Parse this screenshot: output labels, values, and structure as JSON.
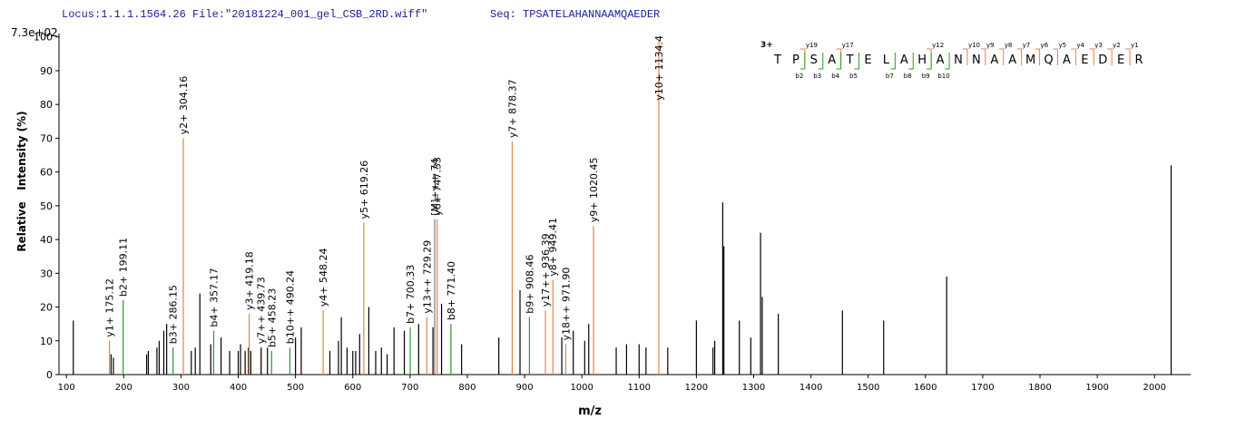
{
  "chart_data": {
    "type": "spectrum",
    "locus": "Locus:1.1.1.1564.26 File:\"20181224_001_gel_CSB_2RD.wiff\"",
    "seq_label": "Seq: TPSATELAHANNAAMQAEDER",
    "scale_label": "7.3e+02",
    "xlabel": "m/z",
    "ylabel": "Relative   Intensity (%)",
    "xlim": [
      87,
      2063
    ],
    "ylim": [
      0,
      101
    ],
    "xticks": [
      100,
      200,
      300,
      400,
      500,
      600,
      700,
      800,
      900,
      1000,
      1100,
      1200,
      1300,
      1400,
      1500,
      1600,
      1700,
      1800,
      1900,
      2000
    ],
    "yticks": [
      0,
      10,
      20,
      30,
      40,
      50,
      60,
      70,
      80,
      90,
      100
    ],
    "x": [
      112,
      175.12,
      178,
      182,
      199.11,
      240,
      243,
      258,
      262,
      270,
      275,
      286.15,
      304.16,
      318,
      325,
      333,
      352,
      357.17,
      370,
      385,
      400,
      404,
      412,
      418,
      419.18,
      422,
      439.73,
      440,
      451,
      458.23,
      490.24,
      500,
      510,
      548.24,
      560,
      575,
      580,
      590,
      600,
      605,
      612,
      619.26,
      628,
      640,
      650,
      660,
      672,
      690,
      700.33,
      715,
      729.29,
      740,
      743,
      747.33,
      755,
      771.4,
      790,
      855,
      878.37,
      892,
      908.46,
      936.39,
      949.41,
      965,
      971.9,
      985,
      1005,
      1012,
      1020.45,
      1060,
      1078,
      1100,
      1112,
      1134.4,
      1150,
      1200,
      1229,
      1232,
      1246,
      1248,
      1275,
      1295,
      1312,
      1315,
      1343,
      1455,
      1527,
      1637,
      2029
    ],
    "values": [
      16,
      10,
      6,
      5,
      22,
      6,
      7,
      8,
      10,
      13,
      15,
      8,
      70,
      7,
      8,
      24,
      9,
      13,
      11,
      7,
      7,
      9,
      7,
      8,
      18,
      7,
      8,
      8,
      8,
      7,
      8,
      11,
      14,
      19,
      7,
      10,
      17,
      8,
      7,
      7,
      12,
      45,
      20,
      7,
      8,
      6,
      14,
      13,
      14,
      15,
      17,
      14,
      46,
      46,
      21,
      15,
      9,
      11,
      69,
      25,
      17,
      19,
      28,
      11,
      9,
      13,
      10,
      15,
      44,
      8,
      9,
      9,
      8,
      99,
      8,
      16,
      8,
      10,
      51,
      38,
      16,
      11,
      42,
      23,
      18,
      19,
      16,
      29,
      62
    ],
    "peak_labels": [
      null,
      "y1+ 175.12",
      null,
      null,
      "b2+ 199.11",
      null,
      null,
      null,
      null,
      null,
      null,
      "b3+ 286.15",
      "y2+ 304.16",
      null,
      null,
      null,
      null,
      "b4+ 357.17",
      null,
      null,
      null,
      null,
      null,
      null,
      "y3+ 419.18",
      null,
      "y7++ 439.73",
      null,
      null,
      "b5+ 458.23",
      "b10++ 490.24",
      null,
      null,
      "y4+ 548.24",
      null,
      null,
      null,
      null,
      null,
      null,
      null,
      "y5+ 619.26",
      null,
      null,
      null,
      null,
      null,
      null,
      "b7+ 700.33",
      null,
      "y13++ 729.29",
      null,
      "[M]+++ 74",
      "y6+ 747.33",
      null,
      "b8+ 771.40",
      null,
      null,
      "y7+ 878.37",
      null,
      "b9+ 908.46",
      "y17++ 936.39",
      "y8+ 949.41",
      null,
      "y18++ 971.90",
      null,
      null,
      null,
      "y9+ 1020.45",
      null,
      null,
      null,
      null,
      "y10+ 1134.4",
      null,
      null,
      null,
      null,
      null,
      null,
      null,
      null,
      null,
      null,
      null,
      null,
      null,
      null,
      null
    ],
    "peak_colors": [
      "#000000",
      "#e8804a",
      "#000000",
      "#000000",
      "#2a9a2a",
      "#000000",
      "#000000",
      "#000000",
      "#000000",
      "#000000",
      "#000000",
      "#2a9a2a",
      "#e8804a",
      "#000000",
      "#000000",
      "#000000",
      "#000000",
      "#2a9a2a",
      "#000000",
      "#000000",
      "#000000",
      "#000000",
      "#000000",
      "#000000",
      "#e8804a",
      "#000000",
      "#e8804a",
      "#000000",
      "#000000",
      "#2a9a2a",
      "#2a9a2a",
      "#000000",
      "#000000",
      "#e8804a",
      "#000000",
      "#000000",
      "#000000",
      "#000000",
      "#000000",
      "#000000",
      "#000000",
      "#e8804a",
      "#000000",
      "#000000",
      "#000000",
      "#000000",
      "#000000",
      "#000000",
      "#2a9a2a",
      "#000000",
      "#e8804a",
      "#000000",
      "#777777",
      "#e8804a",
      "#000000",
      "#2a9a2a",
      "#000000",
      "#000000",
      "#e8804a",
      "#000000",
      "#2a9a2a",
      "#e8804a",
      "#e8804a",
      "#000000",
      "#e8804a",
      "#000000",
      "#000000",
      "#000000",
      "#e8804a",
      "#000000",
      "#000000",
      "#000000",
      "#000000",
      "#e8804a",
      "#000000",
      "#000000",
      "#000000",
      "#000000",
      "#000000",
      "#000000",
      "#000000",
      "#000000",
      "#000000",
      "#000000",
      "#000000",
      "#000000",
      "#000000",
      "#000000",
      "#000000"
    ],
    "fragment_map": {
      "charge": "3+",
      "letters": [
        "T",
        "P",
        "S",
        "A",
        "T",
        "E",
        "L",
        "A",
        "H",
        "A",
        "N",
        "N",
        "A",
        "A",
        "M",
        "Q",
        "A",
        "E",
        "D",
        "E",
        "R"
      ],
      "y_ions": [
        "y19",
        "y17",
        "y12",
        "y10",
        "y9",
        "y8",
        "y7",
        "y6",
        "y5",
        "y4",
        "y3",
        "y2",
        "y1"
      ],
      "b_ions": [
        "b2",
        "b3",
        "b4",
        "b5",
        "b7",
        "b8",
        "b9",
        "b10"
      ],
      "y_color": "#e8804a",
      "b_color": "#2a9a2a"
    }
  }
}
